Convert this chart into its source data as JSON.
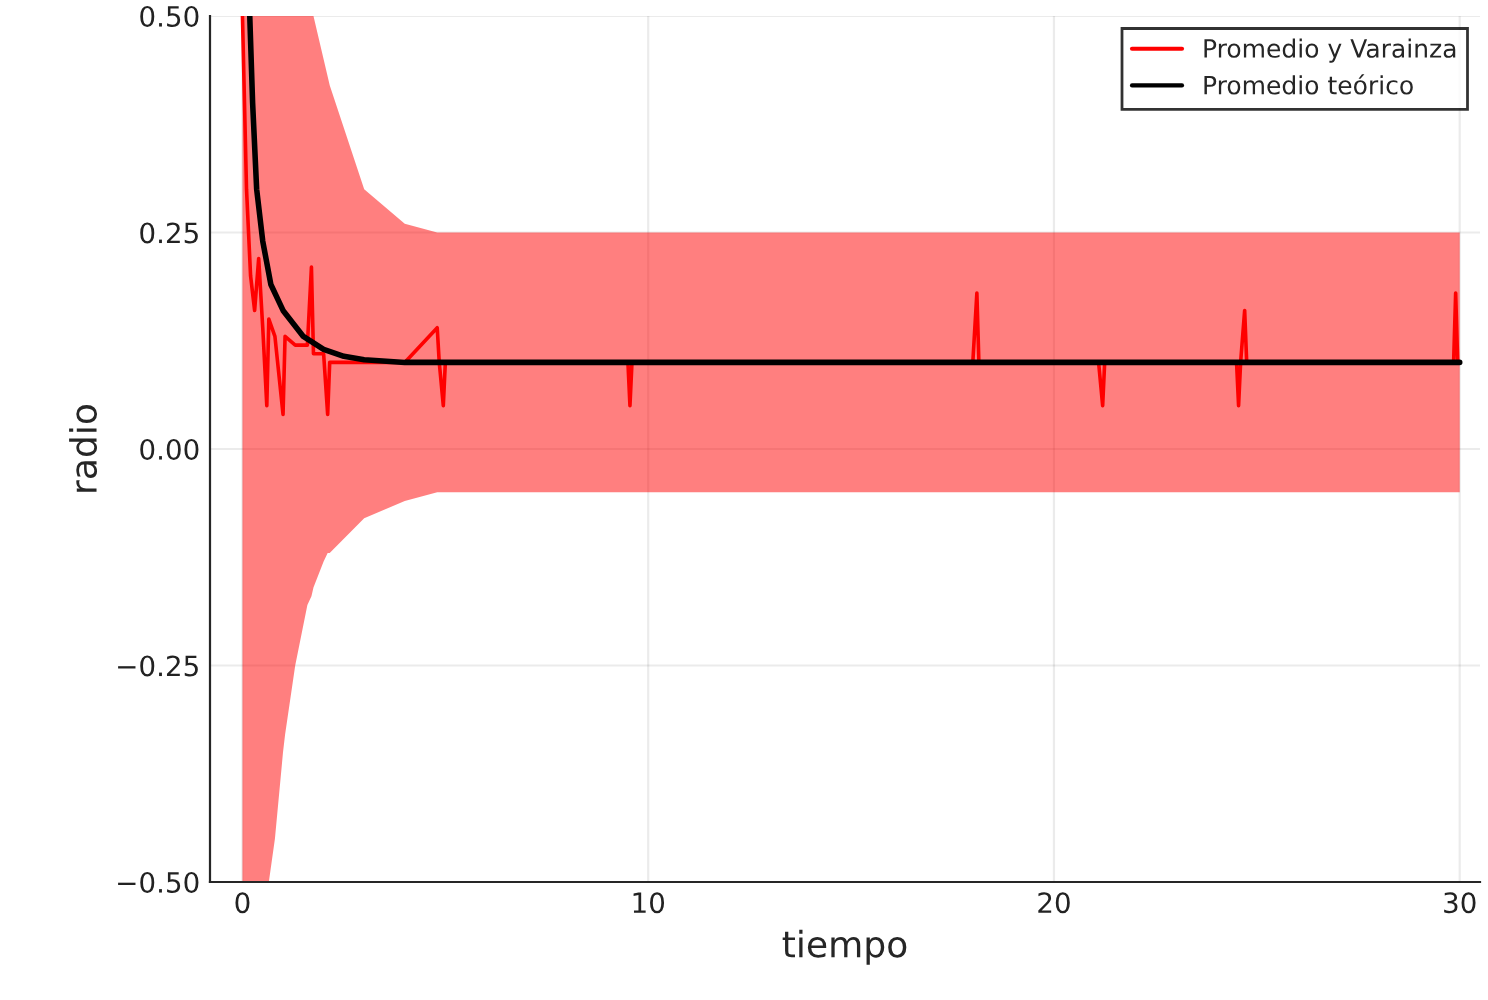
{
  "chart_data": {
    "type": "line",
    "xlabel": "tiempo",
    "ylabel": "radio",
    "xlim": [
      -0.8,
      30.5
    ],
    "ylim": [
      -0.5,
      0.5
    ],
    "xticks": [
      0,
      10,
      20,
      30
    ],
    "yticks": [
      {
        "value": -0.5,
        "label": "−0.50"
      },
      {
        "value": -0.25,
        "label": "−0.25"
      },
      {
        "value": 0,
        "label": "0.00"
      },
      {
        "value": 0.25,
        "label": "0.25"
      },
      {
        "value": 0.5,
        "label": "0.50"
      }
    ],
    "grid": true,
    "legend": "top right",
    "series": [
      {
        "name": "Promedio y Varainza",
        "color": "#ff0000",
        "x": [
          0,
          0.1,
          0.2,
          0.3,
          0.4,
          0.5,
          0.6,
          0.65,
          0.8,
          1.0,
          1.05,
          1.3,
          1.6,
          1.7,
          1.75,
          2.0,
          2.1,
          2.15,
          3,
          4,
          4.8,
          4.85,
          4.95,
          5.0,
          7,
          9.5,
          9.55,
          9.6,
          12,
          15,
          18,
          18.1,
          18.15,
          21.1,
          21.2,
          21.25,
          24.5,
          24.55,
          24.6,
          24.7,
          24.75,
          27,
          29.85,
          29.9,
          29.95,
          30
        ],
        "values": [
          0.5,
          0.3,
          0.2,
          0.16,
          0.22,
          0.14,
          0.05,
          0.15,
          0.13,
          0.04,
          0.13,
          0.12,
          0.12,
          0.21,
          0.11,
          0.11,
          0.04,
          0.1,
          0.1,
          0.1,
          0.14,
          0.1,
          0.05,
          0.1,
          0.1,
          0.1,
          0.05,
          0.1,
          0.1,
          0.1,
          0.1,
          0.18,
          0.1,
          0.1,
          0.05,
          0.1,
          0.1,
          0.05,
          0.1,
          0.16,
          0.1,
          0.1,
          0.1,
          0.18,
          0.1,
          0.1
        ],
        "upper": [
          0.5,
          0.5,
          0.5,
          0.5,
          0.5,
          0.5,
          0.5,
          0.5,
          0.5,
          0.5,
          0.5,
          0.5,
          0.5,
          0.5,
          0.5,
          0.45,
          0.43,
          0.42,
          0.3,
          0.26,
          0.25,
          0.25,
          0.25,
          0.25,
          0.25,
          0.25,
          0.25,
          0.25,
          0.25,
          0.25,
          0.25,
          0.25,
          0.25,
          0.25,
          0.25,
          0.25,
          0.25,
          0.25,
          0.25,
          0.25,
          0.25,
          0.25,
          0.25,
          0.25,
          0.25,
          0.25
        ],
        "lower": [
          -0.5,
          -0.5,
          -0.5,
          -0.5,
          -0.5,
          -0.5,
          -0.5,
          -0.5,
          -0.45,
          -0.35,
          -0.33,
          -0.25,
          -0.18,
          -0.17,
          -0.16,
          -0.13,
          -0.12,
          -0.12,
          -0.08,
          -0.06,
          -0.05,
          -0.05,
          -0.05,
          -0.05,
          -0.05,
          -0.05,
          -0.05,
          -0.05,
          -0.05,
          -0.05,
          -0.05,
          -0.05,
          -0.05,
          -0.05,
          -0.05,
          -0.05,
          -0.05,
          -0.05,
          -0.05,
          -0.05,
          -0.05,
          -0.05,
          -0.05,
          -0.05,
          -0.05,
          -0.05
        ]
      },
      {
        "name": "Promedio teórico",
        "color": "#000000",
        "x": [
          0.18,
          0.25,
          0.35,
          0.5,
          0.7,
          1.0,
          1.5,
          2,
          2.5,
          3,
          4,
          30
        ],
        "values": [
          0.5,
          0.4,
          0.3,
          0.24,
          0.19,
          0.16,
          0.13,
          0.115,
          0.107,
          0.103,
          0.1,
          0.1
        ]
      }
    ]
  }
}
